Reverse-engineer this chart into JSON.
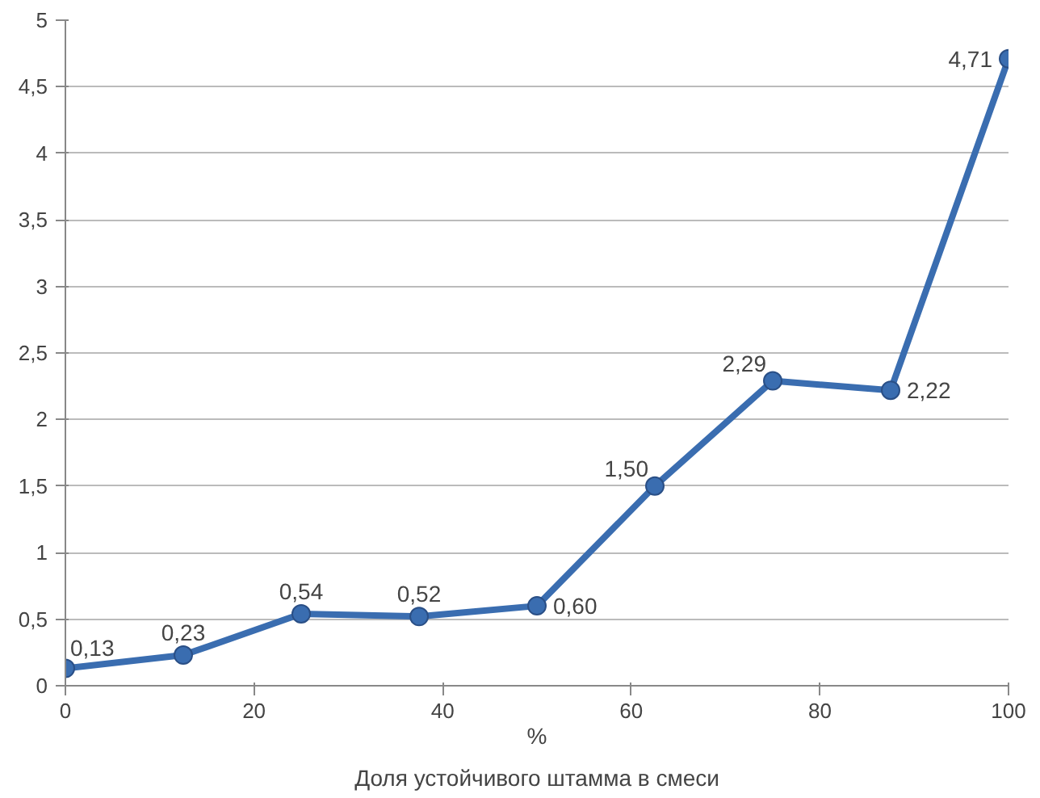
{
  "chart_data": {
    "type": "line",
    "xlabel": "%",
    "annotations": [
      "Доля устойчивого штамма в смеси"
    ],
    "x": [
      0,
      12.5,
      25,
      37.5,
      50,
      62.5,
      75,
      87.5,
      100
    ],
    "series": [
      {
        "color": "#3a6db0",
        "values": [
          0.13,
          0.23,
          0.54,
          0.52,
          0.6,
          1.5,
          2.29,
          2.22,
          4.71
        ],
        "value_labels": [
          "0,13",
          "0,23",
          "0,54",
          "0,52",
          "0,60",
          "1,50",
          "2,29",
          "2,22",
          "4,71"
        ]
      }
    ],
    "xlim": [
      0,
      100
    ],
    "xticks": [
      0,
      20,
      40,
      60,
      80,
      100
    ],
    "ylim": [
      0,
      5
    ],
    "yticks": [
      0,
      {
        "value": 0.5,
        "label": "0,5"
      },
      1,
      {
        "value": 1.5,
        "label": "1,5"
      },
      2,
      {
        "value": 2.5,
        "label": "2,5"
      },
      3,
      {
        "value": 3.5,
        "label": "3,5"
      },
      4,
      {
        "value": 4.5,
        "label": "4,5"
      },
      5
    ],
    "grid": "y",
    "marker": "circle",
    "line_style": "solid"
  }
}
